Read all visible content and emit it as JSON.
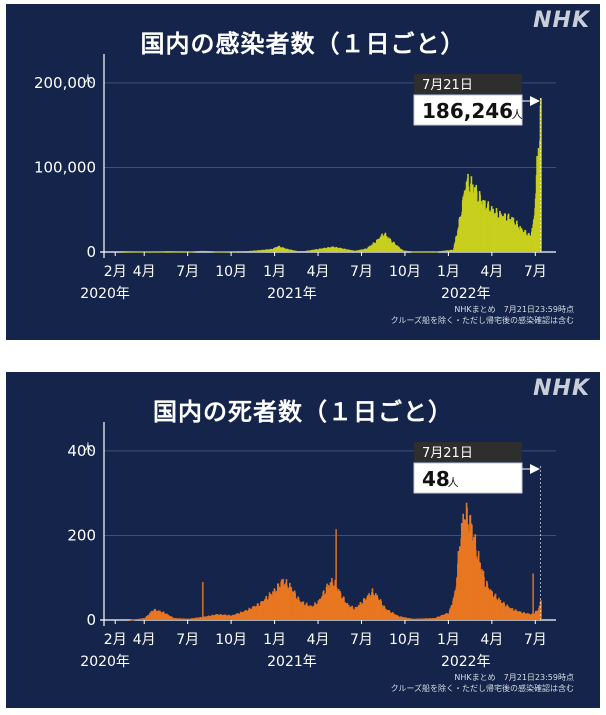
{
  "source": {
    "logo": "NHK",
    "note1": "NHKまとめ　7月21日23:59時点",
    "note2": "クルーズ船を除く・ただし帰宅後の感染確認は含む"
  },
  "chart_data": [
    {
      "type": "area",
      "title": "国内の感染者数（１日ごと）",
      "ylabel": "人",
      "ylim": [
        0,
        220000
      ],
      "y_ticks": [
        0,
        100000,
        200000
      ],
      "y_tick_labels": [
        "0",
        "100,000",
        "200,000"
      ],
      "x_ticks": [
        {
          "label": "2月",
          "m": 1
        },
        {
          "label": "4月",
          "m": 3
        },
        {
          "label": "7月",
          "m": 6
        },
        {
          "label": "10月",
          "m": 9
        },
        {
          "label": "1月",
          "m": 12
        },
        {
          "label": "4月",
          "m": 15
        },
        {
          "label": "7月",
          "m": 18
        },
        {
          "label": "10月",
          "m": 21
        },
        {
          "label": "1月",
          "m": 24
        },
        {
          "label": "4月",
          "m": 27
        },
        {
          "label": "7月",
          "m": 30
        }
      ],
      "year_labels": [
        {
          "label": "2020年",
          "m": 0.3
        },
        {
          "label": "2021年",
          "m": 13.2
        },
        {
          "label": "2022年",
          "m": 25.2
        }
      ],
      "color": "#c8cf1e",
      "grid": true,
      "series": [
        {
          "points": [
            [
              1.5,
              10
            ],
            [
              3.3,
              600
            ],
            [
              4.5,
              50
            ],
            [
              6.0,
              300
            ],
            [
              7.0,
              1500
            ],
            [
              8.0,
              500
            ],
            [
              10.0,
              1000
            ],
            [
              11.0,
              2500
            ],
            [
              11.8,
              4000
            ],
            [
              12.2,
              7800
            ],
            [
              12.8,
              4000
            ],
            [
              13.5,
              1200
            ],
            [
              14.0,
              1200
            ],
            [
              15.0,
              4000
            ],
            [
              16.0,
              7000
            ],
            [
              16.8,
              4000
            ],
            [
              17.5,
              1500
            ],
            [
              18.3,
              4500
            ],
            [
              19.0,
              15000
            ],
            [
              19.5,
              25000
            ],
            [
              20.0,
              15000
            ],
            [
              20.8,
              2000
            ],
            [
              21.5,
              500
            ],
            [
              23.0,
              200
            ],
            [
              24.3,
              3000
            ],
            [
              24.7,
              40000
            ],
            [
              25.2,
              95000
            ],
            [
              25.6,
              90000
            ],
            [
              26.2,
              70000
            ],
            [
              27.0,
              55000
            ],
            [
              27.5,
              50000
            ],
            [
              28.3,
              45000
            ],
            [
              29.0,
              30000
            ],
            [
              29.6,
              22000
            ],
            [
              29.85,
              40000
            ],
            [
              30.05,
              110000
            ],
            [
              30.35,
              186246
            ]
          ]
        }
      ],
      "callout": {
        "date": "7月21日",
        "value": "186,246",
        "unit": "人"
      }
    },
    {
      "type": "bar",
      "title": "国内の死者数（１日ごと）",
      "ylabel": "人",
      "ylim": [
        0,
        440
      ],
      "y_ticks": [
        0,
        200,
        400
      ],
      "y_tick_labels": [
        "0",
        "200",
        "400"
      ],
      "x_ticks": [
        {
          "label": "2月",
          "m": 1
        },
        {
          "label": "4月",
          "m": 3
        },
        {
          "label": "7月",
          "m": 6
        },
        {
          "label": "10月",
          "m": 9
        },
        {
          "label": "1月",
          "m": 12
        },
        {
          "label": "4月",
          "m": 15
        },
        {
          "label": "7月",
          "m": 18
        },
        {
          "label": "10月",
          "m": 21
        },
        {
          "label": "1月",
          "m": 24
        },
        {
          "label": "4月",
          "m": 27
        },
        {
          "label": "7月",
          "m": 30
        }
      ],
      "year_labels": [
        {
          "label": "2020年",
          "m": 0.3
        },
        {
          "label": "2021年",
          "m": 13.2
        },
        {
          "label": "2022年",
          "m": 25.2
        }
      ],
      "color": "#e87722",
      "grid": true,
      "series": [
        {
          "points": [
            [
              2.0,
              0
            ],
            [
              3.0,
              5
            ],
            [
              3.6,
              28
            ],
            [
              4.3,
              20
            ],
            [
              5.0,
              5
            ],
            [
              6.0,
              3
            ],
            [
              7.0,
              8
            ],
            [
              8.0,
              15
            ],
            [
              9.0,
              12
            ],
            [
              10.0,
              25
            ],
            [
              11.0,
              45
            ],
            [
              12.0,
              80
            ],
            [
              12.5,
              105
            ],
            [
              13.0,
              90
            ],
            [
              13.7,
              50
            ],
            [
              14.5,
              35
            ],
            [
              15.0,
              50
            ],
            [
              15.6,
              90
            ],
            [
              16.0,
              105
            ],
            [
              16.5,
              70
            ],
            [
              17.0,
              40
            ],
            [
              17.5,
              30
            ],
            [
              18.3,
              60
            ],
            [
              18.7,
              75
            ],
            [
              19.1,
              60
            ],
            [
              19.6,
              30
            ],
            [
              20.5,
              10
            ],
            [
              21.5,
              3
            ],
            [
              23.0,
              5
            ],
            [
              24.0,
              20
            ],
            [
              24.4,
              70
            ],
            [
              24.8,
              230
            ],
            [
              25.1,
              290
            ],
            [
              25.5,
              260
            ],
            [
              26.0,
              170
            ],
            [
              26.5,
              100
            ],
            [
              27.0,
              70
            ],
            [
              27.7,
              45
            ],
            [
              28.3,
              30
            ],
            [
              29.0,
              20
            ],
            [
              29.7,
              15
            ],
            [
              30.1,
              25
            ],
            [
              30.35,
              48
            ]
          ]
        }
      ],
      "spikes": [
        [
          7.0,
          90
        ],
        [
          16.2,
          215
        ],
        [
          26.0,
          100
        ],
        [
          29.8,
          110
        ]
      ],
      "callout": {
        "date": "7月21日",
        "value": "48",
        "unit": "人"
      }
    }
  ]
}
